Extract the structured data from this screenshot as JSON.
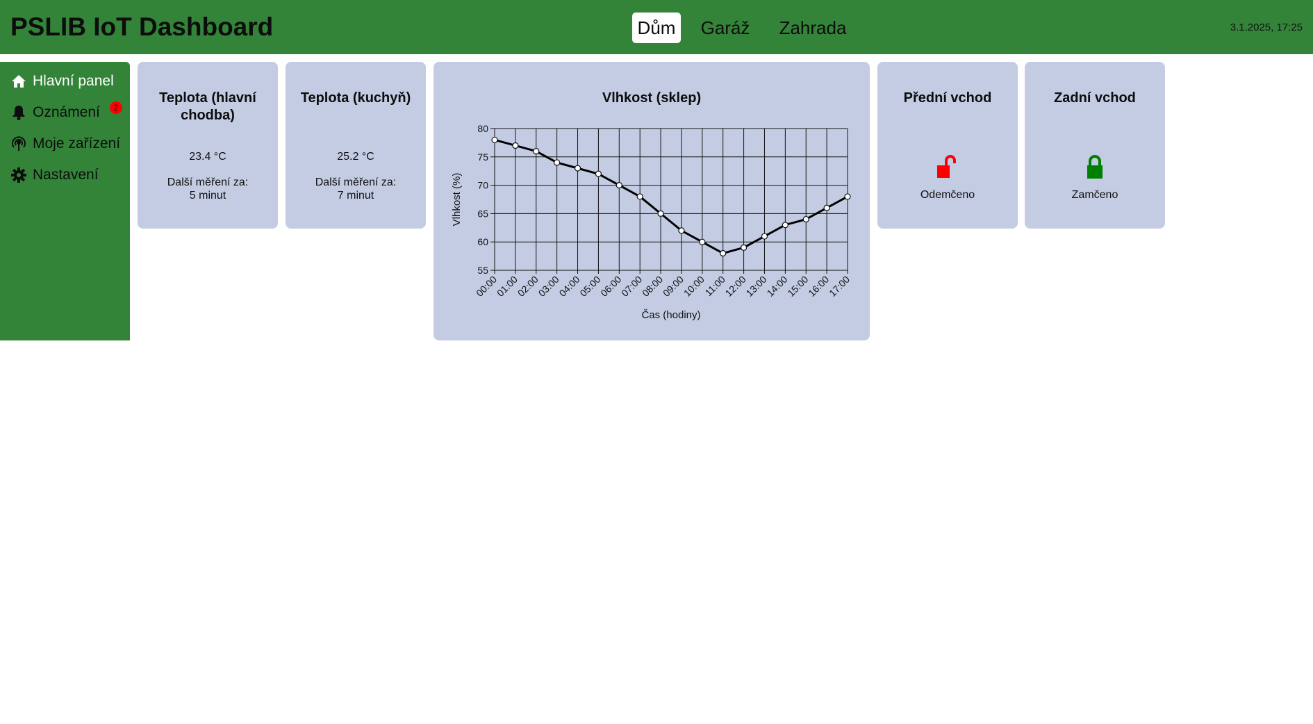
{
  "header": {
    "title": "PSLIB IoT Dashboard",
    "tabs": [
      {
        "label": "Dům",
        "active": true
      },
      {
        "label": "Garáž",
        "active": false
      },
      {
        "label": "Zahrada",
        "active": false
      }
    ],
    "datetime": "3.1.2025, 17:25"
  },
  "sidebar": {
    "items": [
      {
        "label": "Hlavní panel",
        "icon": "home-icon",
        "active": true
      },
      {
        "label": "Oznámení",
        "icon": "bell-icon",
        "active": false
      },
      {
        "label": "Moje zařízení",
        "icon": "antenna-icon",
        "active": false
      },
      {
        "label": "Nastavení",
        "icon": "gear-icon",
        "active": false
      }
    ],
    "notification_badge": "2"
  },
  "cards": {
    "temp_hall": {
      "title": "Teplota (hlavní chodba)",
      "value": "23.4 °C",
      "next_label": "Další měření za:",
      "next_value": "5 minut"
    },
    "temp_kitchen": {
      "title": "Teplota (kuchyň)",
      "value": "25.2 °C",
      "next_label": "Další měření za:",
      "next_value": "7 minut"
    },
    "humidity": {
      "title": "Vlhkost (sklep)"
    },
    "front_door": {
      "title": "Přední vchod",
      "status": "Odemčeno",
      "icon": "unlocked-icon",
      "color": "#ff0000"
    },
    "back_door": {
      "title": "Zadní vchod",
      "status": "Zamčeno",
      "icon": "locked-icon",
      "color": "#008000"
    }
  },
  "colors": {
    "header_bg": "#338438",
    "card_bg": "#c3cce3",
    "badge": "#ff0000"
  },
  "chart_data": {
    "type": "line",
    "title": "Vlhkost (sklep)",
    "xlabel": "Čas (hodiny)",
    "ylabel": "Vlhkost (%)",
    "categories": [
      "00:00",
      "01:00",
      "02:00",
      "03:00",
      "04:00",
      "05:00",
      "06:00",
      "07:00",
      "08:00",
      "09:00",
      "10:00",
      "11:00",
      "12:00",
      "13:00",
      "14:00",
      "15:00",
      "16:00",
      "17:00"
    ],
    "values": [
      78,
      77,
      76,
      74,
      73,
      72,
      70,
      68,
      65,
      62,
      60,
      58,
      59,
      61,
      63,
      64,
      66,
      68
    ],
    "ylim": [
      55,
      80
    ],
    "yticks": [
      "55",
      "60",
      "65",
      "70",
      "75",
      "80"
    ],
    "grid": true
  }
}
